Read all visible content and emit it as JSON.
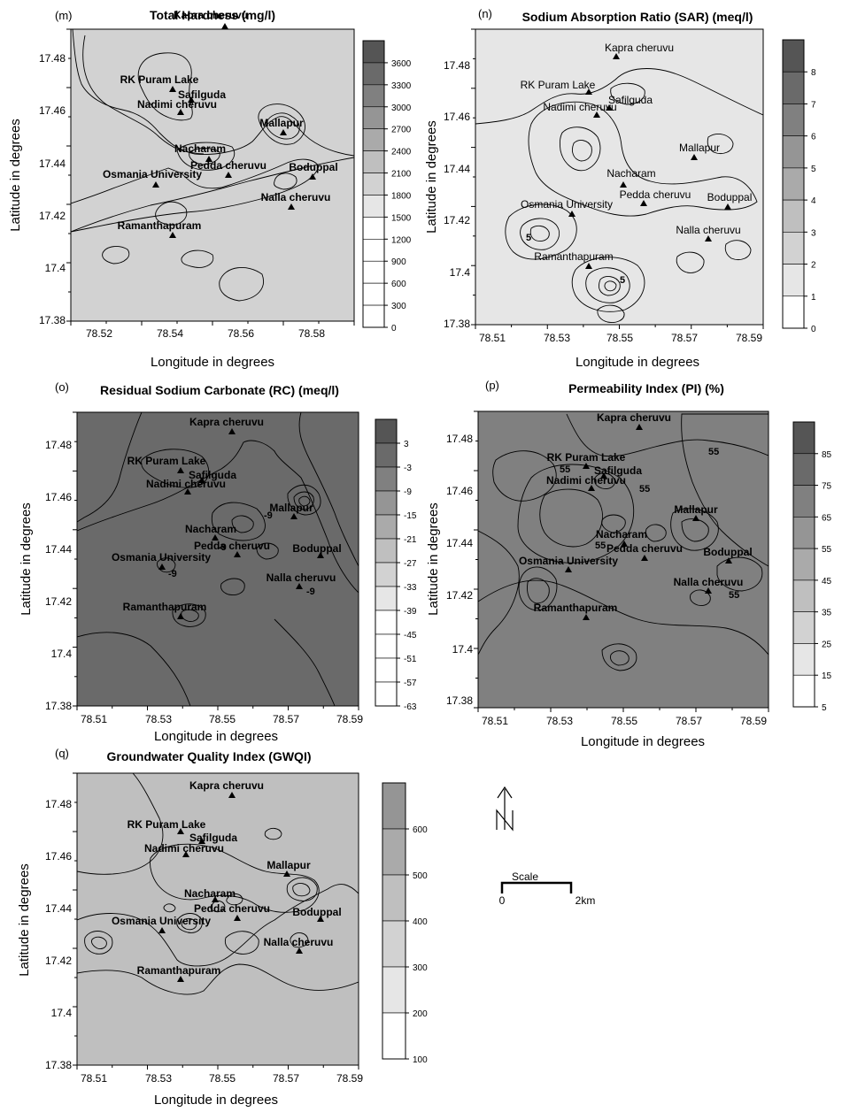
{
  "panels": [
    {
      "id": "m",
      "letter": "(m)",
      "title": "Total Hardness (mg/l)",
      "xlabel": "Longitude in degrees",
      "ylabel": "Latitude in degrees",
      "xticks": [
        "78.52",
        "78.54",
        "78.56",
        "78.58"
      ],
      "yticks": [
        "17.48",
        "17.46",
        "17.44",
        "17.42",
        "17.4",
        "17.38"
      ],
      "legend": [
        "3600",
        "3300",
        "3000",
        "2700",
        "2400",
        "2100",
        "1800",
        "1500",
        "1200",
        "900",
        "600",
        "300",
        "0"
      ],
      "base_shade": 6,
      "sites": [
        {
          "name": "Kapra cheruvu",
          "bold": true
        },
        {
          "name": "RK Puram Lake",
          "bold": true
        },
        {
          "name": "Safilguda",
          "bold": true
        },
        {
          "name": "Nadimi cheruvu",
          "bold": true
        },
        {
          "name": "Mallapur",
          "bold": true
        },
        {
          "name": "Nacharam",
          "bold": true
        },
        {
          "name": "Pedda cheruvu",
          "bold": true
        },
        {
          "name": "Boduppal",
          "bold": true
        },
        {
          "name": "Osmania University",
          "bold": true
        },
        {
          "name": "Nalla cheruvu",
          "bold": true
        },
        {
          "name": "Ramanthapuram",
          "bold": true
        }
      ],
      "contour_labels": []
    },
    {
      "id": "n",
      "letter": "(n)",
      "title": "Sodium Absorption Ratio (SAR) (meq/l)",
      "xlabel": "Longitude in degrees",
      "ylabel": "Latitude in degrees",
      "xticks": [
        "78.51",
        "78.53",
        "78.55",
        "78.57",
        "78.59"
      ],
      "yticks": [
        "17.48",
        "17.46",
        "17.44",
        "17.42",
        "17.4",
        "17.38"
      ],
      "legend": [
        "8",
        "7",
        "6",
        "5",
        "4",
        "3",
        "2",
        "1",
        "0"
      ],
      "base_shade": 7,
      "sites": [
        {
          "name": "Kapra cheruvu",
          "bold": false
        },
        {
          "name": "RK Puram Lake",
          "bold": false
        },
        {
          "name": "Safilguda",
          "bold": false
        },
        {
          "name": "Nadimi cheruvu",
          "bold": false
        },
        {
          "name": "Mallapur",
          "bold": false
        },
        {
          "name": "Nacharam",
          "bold": false
        },
        {
          "name": "Pedda cheruvu",
          "bold": false
        },
        {
          "name": "Boduppal",
          "bold": false
        },
        {
          "name": "Osmania University",
          "bold": false
        },
        {
          "name": "Nalla cheruvu",
          "bold": false
        },
        {
          "name": "Ramanthapuram",
          "bold": false
        }
      ],
      "contour_labels": [
        "5",
        "5"
      ]
    },
    {
      "id": "o",
      "letter": "(o)",
      "title": "Residual Sodium Carbonate (RC) (meq/l)",
      "xlabel": "Longitude in degrees",
      "ylabel": "Latitude in degrees",
      "xticks": [
        "78.51",
        "78.53",
        "78.55",
        "78.57",
        "78.59"
      ],
      "yticks": [
        "17.48",
        "17.46",
        "17.44",
        "17.42",
        "17.4",
        "17.38"
      ],
      "legend": [
        "3",
        "-3",
        "-9",
        "-15",
        "-21",
        "-27",
        "-33",
        "-39",
        "-45",
        "-51",
        "-57",
        "-63"
      ],
      "base_shade": 1,
      "sites": [
        {
          "name": "Kapra cheruvu",
          "bold": true
        },
        {
          "name": "RK Puram Lake",
          "bold": true
        },
        {
          "name": "Safilguda",
          "bold": true
        },
        {
          "name": "Nadimi cheruvu",
          "bold": true
        },
        {
          "name": "Mallapur",
          "bold": true
        },
        {
          "name": "Nacharam",
          "bold": true
        },
        {
          "name": "Pedda cheruvu",
          "bold": true
        },
        {
          "name": "Boduppal",
          "bold": true
        },
        {
          "name": "Osmania University",
          "bold": true
        },
        {
          "name": "Nalla cheruvu",
          "bold": true
        },
        {
          "name": "Ramanthapuram",
          "bold": true
        }
      ],
      "contour_labels": [
        "-9",
        "-9",
        "-9",
        "-9"
      ]
    },
    {
      "id": "p",
      "letter": "(p)",
      "title": "Permeability Index (PI) (%)",
      "xlabel": "Longitude in degrees",
      "ylabel": "Latitude in degrees",
      "xticks": [
        "78.51",
        "78.53",
        "78.55",
        "78.57",
        "78.59"
      ],
      "yticks": [
        "17.48",
        "17.46",
        "17.44",
        "17.42",
        "17.4",
        "17.38"
      ],
      "legend": [
        "85",
        "75",
        "65",
        "55",
        "45",
        "35",
        "25",
        "15",
        "5"
      ],
      "base_shade": 2,
      "sites": [
        {
          "name": "Kapra cheruvu",
          "bold": true
        },
        {
          "name": "RK Puram Lake",
          "bold": true
        },
        {
          "name": "Safilguda",
          "bold": true
        },
        {
          "name": "Nadimi cheruvu",
          "bold": true
        },
        {
          "name": "Mallapur",
          "bold": true
        },
        {
          "name": "Nacharam",
          "bold": true
        },
        {
          "name": "Pedda cheruvu",
          "bold": true
        },
        {
          "name": "Boduppal",
          "bold": true
        },
        {
          "name": "Osmania University",
          "bold": true
        },
        {
          "name": "Nalla cheruvu",
          "bold": true
        },
        {
          "name": "Ramanthapuram",
          "bold": true
        }
      ],
      "contour_labels": [
        "55",
        "55",
        "55",
        "55",
        "55"
      ]
    },
    {
      "id": "q",
      "letter": "(q)",
      "title": "Groundwater Quality Index (GWQI)",
      "xlabel": "Longitude in degrees",
      "ylabel": "Latitude in degrees",
      "xticks": [
        "78.51",
        "78.53",
        "78.55",
        "78.57",
        "78.59"
      ],
      "yticks": [
        "17.48",
        "17.46",
        "17.44",
        "17.42",
        "17.4",
        "17.38"
      ],
      "legend": [
        "600",
        "500",
        "400",
        "300",
        "200",
        "100"
      ],
      "base_shade": 5,
      "sites": [
        {
          "name": "Kapra cheruvu",
          "bold": true
        },
        {
          "name": "RK Puram Lake",
          "bold": true
        },
        {
          "name": "Safilguda",
          "bold": true
        },
        {
          "name": "Nadimi cheruvu",
          "bold": true
        },
        {
          "name": "Mallapur",
          "bold": true
        },
        {
          "name": "Nacharam",
          "bold": true
        },
        {
          "name": "Pedda cheruvu",
          "bold": true
        },
        {
          "name": "Boduppal",
          "bold": true
        },
        {
          "name": "Osmania University",
          "bold": true
        },
        {
          "name": "Nalla cheruvu",
          "bold": true
        },
        {
          "name": "Ramanthapuram",
          "bold": true
        }
      ],
      "contour_labels": []
    }
  ],
  "north_arrow": {
    "icon": "north-arrow-icon",
    "label": "N"
  },
  "scale": {
    "title": "Scale",
    "start": "0",
    "end": "2km"
  },
  "colors": {
    "darkest": "#555555",
    "lightest": "#ffffff",
    "line": "#000000"
  }
}
